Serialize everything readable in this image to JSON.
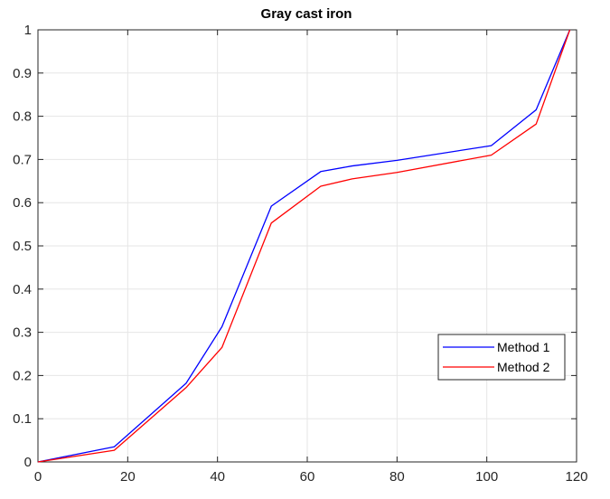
{
  "chart_data": {
    "type": "line",
    "title": "Gray cast iron",
    "xlabel": "",
    "ylabel": "",
    "xlim": [
      0,
      120
    ],
    "ylim": [
      0,
      1
    ],
    "x_ticks": [
      0,
      20,
      40,
      60,
      80,
      100,
      120
    ],
    "y_ticks": [
      0,
      0.1,
      0.2,
      0.3,
      0.4,
      0.5,
      0.6,
      0.7,
      0.8,
      0.9,
      1
    ],
    "x_tick_labels": [
      "0",
      "20",
      "40",
      "60",
      "80",
      "100",
      "120"
    ],
    "y_tick_labels": [
      "0",
      "0.1",
      "0.2",
      "0.3",
      "0.4",
      "0.5",
      "0.6",
      "0.7",
      "0.8",
      "0.9",
      "1"
    ],
    "grid": true,
    "legend_position": "lower-right",
    "series": [
      {
        "name": "Method 1",
        "color": "#0000ff",
        "points": [
          [
            0,
            0
          ],
          [
            17,
            0.035
          ],
          [
            33,
            0.182
          ],
          [
            41,
            0.313
          ],
          [
            52,
            0.592
          ],
          [
            63,
            0.672
          ],
          [
            70,
            0.685
          ],
          [
            80,
            0.698
          ],
          [
            101,
            0.732
          ],
          [
            111,
            0.815
          ],
          [
            118.5,
            1.0
          ]
        ]
      },
      {
        "name": "Method 2",
        "color": "#ff0000",
        "points": [
          [
            0,
            0
          ],
          [
            17,
            0.027
          ],
          [
            33,
            0.172
          ],
          [
            41,
            0.265
          ],
          [
            52,
            0.553
          ],
          [
            63,
            0.638
          ],
          [
            70,
            0.655
          ],
          [
            80,
            0.67
          ],
          [
            101,
            0.71
          ],
          [
            111,
            0.782
          ],
          [
            118.5,
            1.0
          ]
        ]
      }
    ]
  }
}
